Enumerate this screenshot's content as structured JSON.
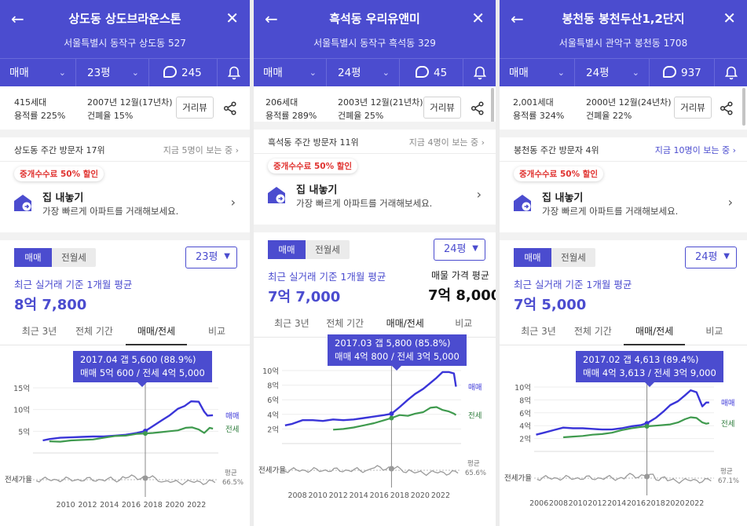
{
  "panels": [
    {
      "title": "상도동 상도브라운스톤",
      "address": "서울특별시 동작구 상도동 527",
      "trade_type": "매매",
      "size": "23평",
      "comments": "245",
      "units": "415세대",
      "far": "용적률 225%",
      "built": "2007년 12월(17년차)",
      "bcr": "건폐율 15%",
      "street_view": "거리뷰",
      "visit_rank": "상도동 주간 방문자 17위",
      "viewers": "지금 5명이 보는 중 ›",
      "promo": "중개수수료 50% 할인",
      "sell_title": "집 내놓기",
      "sell_desc": "가장 빠르게 아파트를 거래해보세요.",
      "seg_on": "매매",
      "seg_off": "전월세",
      "size_dropdown": "23평",
      "avg_label": "최근 실거래 기준 1개월 평균",
      "avg_value": "8억 7,800",
      "ask_label": "",
      "ask_value": "",
      "tabs": [
        "최근 3년",
        "전체 기간",
        "매매/전세",
        "비교"
      ],
      "tooltip_1": "2017.04  갭 5,600 (88.9%)",
      "tooltip_2": "매매 5억 600 / 전세 4억 5,000",
      "label_sale": "매매",
      "label_jeonse": "전세",
      "label_ratio": "전세가율",
      "label_avg": "평균",
      "label_avg_pct": "66.5%"
    },
    {
      "title": "흑석동 우리유앤미",
      "address": "서울특별시 동작구 흑석동 329",
      "trade_type": "매매",
      "size": "24평",
      "comments": "45",
      "units": "206세대",
      "far": "용적률 289%",
      "built": "2003년 12월(21년차)",
      "bcr": "건폐율 25%",
      "street_view": "거리뷰",
      "visit_rank": "흑석동 주간 방문자 11위",
      "viewers": "지금 4명이 보는 중 ›",
      "promo": "중개수수료 50% 할인",
      "sell_title": "집 내놓기",
      "sell_desc": "가장 빠르게 아파트를 거래해보세요.",
      "seg_on": "매매",
      "seg_off": "전월세",
      "size_dropdown": "24평",
      "avg_label": "최근 실거래 기준 1개월 평균",
      "avg_value": "7억 7,000",
      "ask_label": "매물 가격 평균",
      "ask_value": "7억 8,000",
      "tabs": [
        "최근 3년",
        "전체 기간",
        "매매/전세",
        "비교"
      ],
      "tooltip_1": "2017.03  갭 5,800 (85.8%)",
      "tooltip_2": "매매 4억 800 / 전세 3억 5,000",
      "label_sale": "매매",
      "label_jeonse": "전세",
      "label_ratio": "전세가율",
      "label_avg": "평균",
      "label_avg_pct": "65.6%"
    },
    {
      "title": "봉천동 봉천두산1,2단지",
      "address": "서울특별시 관악구 봉천동 1708",
      "trade_type": "매매",
      "size": "24평",
      "comments": "937",
      "units": "2,001세대",
      "far": "용적률 324%",
      "built": "2000년 12월(24년차)",
      "bcr": "건폐율 22%",
      "street_view": "거리뷰",
      "visit_rank": "봉천동 주간 방문자 4위",
      "viewers": "지금 10명이 보는 중 ›",
      "promo": "중개수수료 50% 할인",
      "sell_title": "집 내놓기",
      "sell_desc": "가장 빠르게 아파트를 거래해보세요.",
      "seg_on": "매매",
      "seg_off": "전월세",
      "size_dropdown": "24평",
      "avg_label": "최근 실거래 기준 1개월 평균",
      "avg_value": "7억 5,000",
      "ask_label": "",
      "ask_value": "",
      "tabs": [
        "최근 3년",
        "전체 기간",
        "매매/전세",
        "비교"
      ],
      "tooltip_1": "2017.02  갭 4,613 (89.4%)",
      "tooltip_2": "매매 4억 3,613 / 전세 3억 9,000",
      "label_sale": "매매",
      "label_jeonse": "전세",
      "label_ratio": "전세가율",
      "label_avg": "평균",
      "label_avg_pct": "67.1%"
    }
  ],
  "colors": {
    "brand": "#4b4ccf",
    "sale": "#3a35d8",
    "jeonse": "#3f9a4e",
    "ratio": "#8a8a8a",
    "promo": "#e0322f"
  },
  "chart_data": [
    {
      "type": "line",
      "yticks": [
        "15억",
        "10억",
        "5억"
      ],
      "ylim": [
        0,
        15
      ],
      "xticks": [
        "2010",
        "2012",
        "2014",
        "2016",
        "2018",
        "2020",
        "2022"
      ],
      "xlim": [
        2007,
        2024
      ],
      "marker_x": 2017.3,
      "series": [
        {
          "name": "매매",
          "x": [
            2007.9,
            2008.5,
            2009.5,
            2010.5,
            2011.5,
            2012.5,
            2013.5,
            2014.5,
            2015.5,
            2016.5,
            2017.3,
            2018.0,
            2018.8,
            2019.5,
            2020.3,
            2020.9,
            2021.5,
            2022.2,
            2022.7,
            2023.0,
            2023.5
          ],
          "values": [
            2.9,
            3.2,
            3.5,
            3.6,
            3.7,
            3.8,
            3.8,
            4.0,
            4.2,
            4.6,
            5.06,
            6.2,
            7.5,
            8.6,
            10.2,
            10.8,
            11.9,
            11.8,
            9.5,
            8.6,
            8.7
          ]
        },
        {
          "name": "전세",
          "x": [
            2008.5,
            2009.5,
            2010.5,
            2011.5,
            2012.5,
            2013.5,
            2014.5,
            2015.5,
            2016.5,
            2017.3,
            2018.0,
            2018.8,
            2019.5,
            2020.3,
            2021.0,
            2021.6,
            2022.2,
            2022.7,
            2023.2,
            2023.5
          ],
          "values": [
            2.7,
            2.6,
            2.9,
            3.0,
            3.1,
            3.5,
            3.9,
            4.0,
            4.4,
            4.5,
            4.6,
            4.8,
            5.0,
            5.2,
            5.8,
            5.9,
            5.4,
            4.6,
            5.8,
            5.6
          ]
        }
      ]
    },
    {
      "type": "line",
      "yticks": [
        "10억",
        "8억",
        "6억",
        "4억",
        "2억"
      ],
      "ylim": [
        0,
        10
      ],
      "xticks": [
        "2008",
        "2010",
        "2012",
        "2014",
        "2016",
        "2018",
        "2020",
        "2022"
      ],
      "xlim": [
        2006.5,
        2024
      ],
      "marker_x": 2017.2,
      "series": [
        {
          "name": "매매",
          "x": [
            2006.8,
            2007.5,
            2008.5,
            2009.5,
            2010.5,
            2011.5,
            2012.5,
            2013.5,
            2014.5,
            2015.5,
            2016.5,
            2017.2,
            2018.0,
            2018.8,
            2019.5,
            2020.3,
            2021.0,
            2021.6,
            2022.2,
            2022.8,
            2023.3,
            2023.5
          ],
          "values": [
            2.5,
            2.7,
            3.2,
            3.2,
            3.1,
            3.3,
            3.2,
            3.3,
            3.5,
            3.7,
            3.9,
            4.08,
            5.0,
            6.0,
            6.8,
            7.5,
            8.3,
            9.0,
            9.8,
            9.8,
            9.6,
            7.8
          ]
        },
        {
          "name": "전세",
          "x": [
            2011.5,
            2012.5,
            2013.5,
            2014.5,
            2015.5,
            2016.5,
            2017.2,
            2018.0,
            2018.8,
            2019.5,
            2020.3,
            2021.0,
            2021.6,
            2022.2,
            2022.8,
            2023.3,
            2023.5
          ],
          "values": [
            1.9,
            2.0,
            2.2,
            2.5,
            2.8,
            3.2,
            3.5,
            3.9,
            3.8,
            4.1,
            4.3,
            4.9,
            5.0,
            4.6,
            4.4,
            4.1,
            3.9
          ]
        }
      ]
    },
    {
      "type": "line",
      "yticks": [
        "10억",
        "8억",
        "6억",
        "4억",
        "2억"
      ],
      "ylim": [
        0,
        10
      ],
      "xticks": [
        "2006",
        "2008",
        "2010",
        "2012",
        "2014",
        "2016",
        "2018",
        "2020",
        "2022"
      ],
      "xlim": [
        2005.5,
        2024
      ],
      "marker_x": 2017.1,
      "series": [
        {
          "name": "매매",
          "x": [
            2005.7,
            2006.5,
            2007.5,
            2008.5,
            2009.5,
            2010.5,
            2011.5,
            2012.5,
            2013.5,
            2014.5,
            2015.5,
            2016.5,
            2017.1,
            2018.0,
            2018.8,
            2019.5,
            2020.3,
            2021.0,
            2021.6,
            2022.2,
            2022.8,
            2023.2,
            2023.5
          ],
          "values": [
            2.6,
            2.9,
            3.3,
            3.7,
            3.6,
            3.6,
            3.5,
            3.4,
            3.4,
            3.6,
            3.9,
            4.1,
            4.36,
            5.2,
            6.2,
            7.2,
            7.8,
            8.7,
            9.5,
            9.2,
            7.0,
            7.6,
            7.6
          ]
        },
        {
          "name": "전세",
          "x": [
            2008.5,
            2009.5,
            2010.5,
            2011.5,
            2012.5,
            2013.5,
            2014.5,
            2015.5,
            2016.5,
            2017.1,
            2018.0,
            2018.8,
            2019.5,
            2020.3,
            2021.0,
            2021.6,
            2022.2,
            2022.8,
            2023.2,
            2023.5
          ],
          "values": [
            2.2,
            2.3,
            2.4,
            2.6,
            2.7,
            2.9,
            3.3,
            3.6,
            3.8,
            3.9,
            4.0,
            4.1,
            4.2,
            4.5,
            5.0,
            5.3,
            5.2,
            4.5,
            4.3,
            4.4
          ]
        }
      ]
    }
  ]
}
